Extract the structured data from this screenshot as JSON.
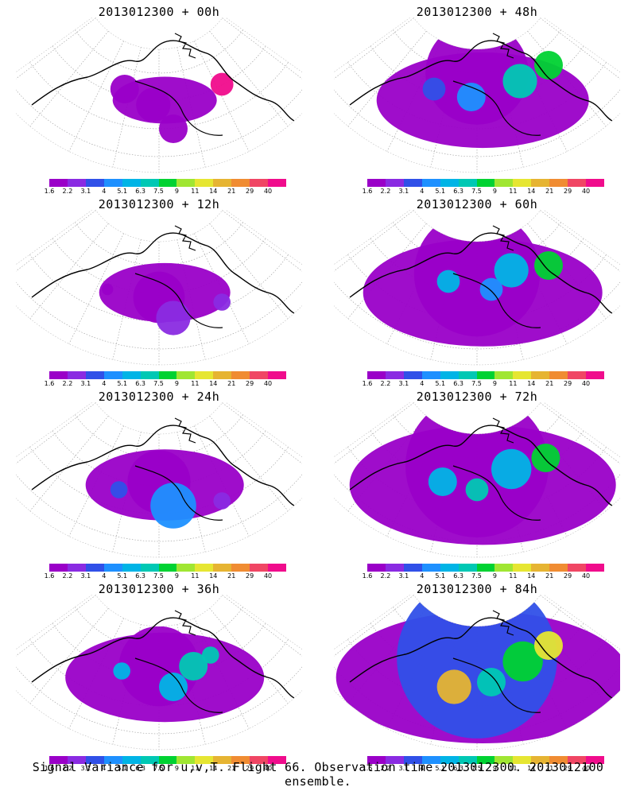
{
  "footer": "Signal Variance for u,v,T. Flight 66. Observation time 2013012300. 2013012100 ensemble.",
  "colorbar": {
    "ticks": [
      "1.6",
      "2.2",
      "3.1",
      "4",
      "5.1",
      "6.3",
      "7.5",
      "9",
      "11",
      "14",
      "21",
      "29",
      "40"
    ],
    "colors": [
      "#9a00c8",
      "#8a2be2",
      "#3050e8",
      "#1e90ff",
      "#00b4e6",
      "#00c8b4",
      "#00d232",
      "#a0e632",
      "#e6e632",
      "#e6b432",
      "#f08c32",
      "#f04664",
      "#f00c8c"
    ]
  },
  "chart_data": [
    {
      "type": "heatmap",
      "title": "2013012300 + 00h",
      "forecast_hour": 0,
      "intensity": 0.15,
      "regions": [
        {
          "cx": 0.38,
          "cy": 0.45,
          "r": 0.05,
          "level": 0
        },
        {
          "cx": 0.48,
          "cy": 0.55,
          "r": 0.06,
          "level": 0
        },
        {
          "cx": 0.55,
          "cy": 0.7,
          "r": 0.05,
          "level": 0
        },
        {
          "cx": 0.72,
          "cy": 0.42,
          "r": 0.04,
          "level": 12
        }
      ]
    },
    {
      "type": "heatmap",
      "title": "2013012300 + 12h",
      "forecast_hour": 12,
      "intensity": 0.25,
      "regions": [
        {
          "cx": 0.5,
          "cy": 0.55,
          "r": 0.09,
          "level": 0
        },
        {
          "cx": 0.55,
          "cy": 0.68,
          "r": 0.06,
          "level": 1
        },
        {
          "cx": 0.32,
          "cy": 0.5,
          "r": 0.02,
          "level": 0
        },
        {
          "cx": 0.72,
          "cy": 0.58,
          "r": 0.03,
          "level": 1
        }
      ]
    },
    {
      "type": "heatmap",
      "title": "2013012300 + 24h",
      "forecast_hour": 24,
      "intensity": 0.35,
      "regions": [
        {
          "cx": 0.5,
          "cy": 0.5,
          "r": 0.11,
          "level": 0
        },
        {
          "cx": 0.55,
          "cy": 0.65,
          "r": 0.08,
          "level": 3
        },
        {
          "cx": 0.36,
          "cy": 0.55,
          "r": 0.03,
          "level": 2
        },
        {
          "cx": 0.72,
          "cy": 0.62,
          "r": 0.03,
          "level": 1
        }
      ]
    },
    {
      "type": "heatmap",
      "title": "2013012300 + 36h",
      "forecast_hour": 36,
      "intensity": 0.5,
      "regions": [
        {
          "cx": 0.5,
          "cy": 0.45,
          "r": 0.14,
          "level": 0
        },
        {
          "cx": 0.62,
          "cy": 0.45,
          "r": 0.05,
          "level": 5
        },
        {
          "cx": 0.55,
          "cy": 0.58,
          "r": 0.05,
          "level": 4
        },
        {
          "cx": 0.37,
          "cy": 0.48,
          "r": 0.03,
          "level": 4
        },
        {
          "cx": 0.68,
          "cy": 0.38,
          "r": 0.03,
          "level": 5
        }
      ]
    },
    {
      "type": "heatmap",
      "title": "2013012300 + 48h",
      "forecast_hour": 48,
      "intensity": 0.55,
      "regions": [
        {
          "cx": 0.5,
          "cy": 0.35,
          "r": 0.18,
          "level": 0
        },
        {
          "cx": 0.65,
          "cy": 0.4,
          "r": 0.06,
          "level": 5
        },
        {
          "cx": 0.48,
          "cy": 0.5,
          "r": 0.05,
          "level": 3
        },
        {
          "cx": 0.75,
          "cy": 0.3,
          "r": 0.05,
          "level": 6
        },
        {
          "cx": 0.35,
          "cy": 0.45,
          "r": 0.04,
          "level": 2
        }
      ]
    },
    {
      "type": "heatmap",
      "title": "2013012300 + 60h",
      "forecast_hour": 60,
      "intensity": 0.65,
      "regions": [
        {
          "cx": 0.5,
          "cy": 0.4,
          "r": 0.22,
          "level": 0
        },
        {
          "cx": 0.62,
          "cy": 0.38,
          "r": 0.06,
          "level": 4
        },
        {
          "cx": 0.75,
          "cy": 0.35,
          "r": 0.05,
          "level": 6
        },
        {
          "cx": 0.4,
          "cy": 0.45,
          "r": 0.04,
          "level": 4
        },
        {
          "cx": 0.55,
          "cy": 0.5,
          "r": 0.04,
          "level": 3
        }
      ]
    },
    {
      "type": "heatmap",
      "title": "2013012300 + 72h",
      "forecast_hour": 72,
      "intensity": 0.75,
      "regions": [
        {
          "cx": 0.5,
          "cy": 0.4,
          "r": 0.25,
          "level": 0
        },
        {
          "cx": 0.62,
          "cy": 0.42,
          "r": 0.07,
          "level": 4
        },
        {
          "cx": 0.74,
          "cy": 0.35,
          "r": 0.05,
          "level": 6
        },
        {
          "cx": 0.38,
          "cy": 0.5,
          "r": 0.05,
          "level": 4
        },
        {
          "cx": 0.5,
          "cy": 0.55,
          "r": 0.04,
          "level": 5
        }
      ]
    },
    {
      "type": "heatmap",
      "title": "2013012300 + 84h",
      "forecast_hour": 84,
      "intensity": 0.85,
      "regions": [
        {
          "cx": 0.5,
          "cy": 0.4,
          "r": 0.28,
          "level": 2
        },
        {
          "cx": 0.42,
          "cy": 0.58,
          "r": 0.06,
          "level": 9
        },
        {
          "cx": 0.66,
          "cy": 0.42,
          "r": 0.07,
          "level": 6
        },
        {
          "cx": 0.75,
          "cy": 0.32,
          "r": 0.05,
          "level": 8
        },
        {
          "cx": 0.55,
          "cy": 0.55,
          "r": 0.05,
          "level": 5
        }
      ]
    }
  ]
}
